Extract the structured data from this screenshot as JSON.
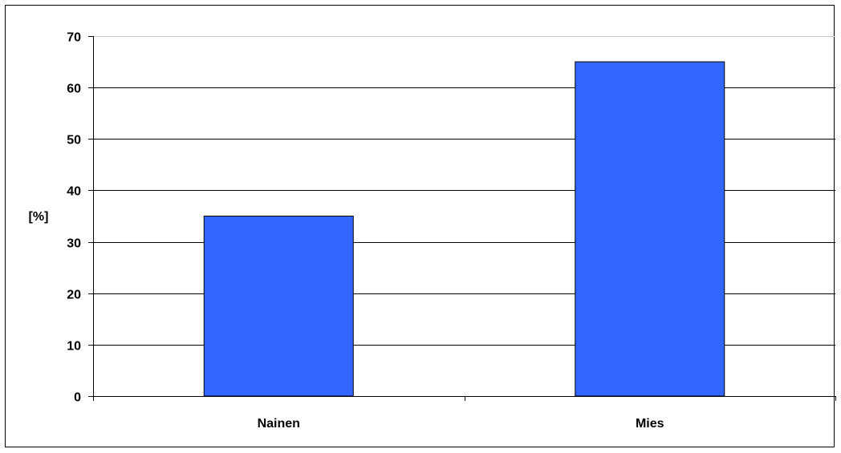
{
  "chart_data": {
    "type": "bar",
    "categories": [
      "Nainen",
      "Mies"
    ],
    "values": [
      35,
      65
    ],
    "title": "",
    "xlabel": "",
    "ylabel": "[%]",
    "ylim": [
      0,
      70
    ],
    "yticks": [
      0,
      10,
      20,
      30,
      40,
      50,
      60,
      70
    ],
    "grid": true,
    "legend": "none"
  },
  "colors": {
    "bar_fill": "#3366FF",
    "bar_stroke": "#000000",
    "grid": "#000000",
    "background": "#FFFFFF"
  }
}
